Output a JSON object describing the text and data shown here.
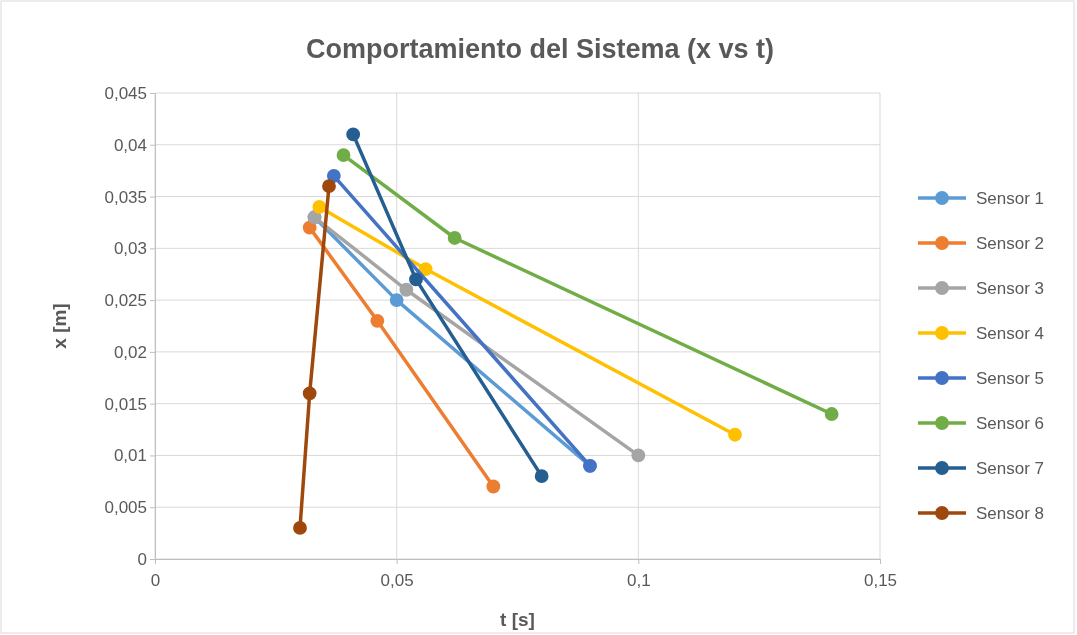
{
  "chart_data": {
    "type": "line",
    "title": "Comportamiento del Sistema (x vs t)",
    "xlabel": "t [s]",
    "ylabel": "x [m]",
    "xlim": [
      0,
      0.15
    ],
    "xticks": [
      {
        "value": 0,
        "label": "0"
      },
      {
        "value": 0.05,
        "label": "0,05"
      },
      {
        "value": 0.1,
        "label": "0,1"
      },
      {
        "value": 0.15,
        "label": "0,15"
      }
    ],
    "ylim": [
      0,
      0.045
    ],
    "yticks": [
      {
        "value": 0,
        "label": "0"
      },
      {
        "value": 0.005,
        "label": "0,005"
      },
      {
        "value": 0.01,
        "label": "0,01"
      },
      {
        "value": 0.015,
        "label": "0,015"
      },
      {
        "value": 0.02,
        "label": "0,02"
      },
      {
        "value": 0.025,
        "label": "0,025"
      },
      {
        "value": 0.03,
        "label": "0,03"
      },
      {
        "value": 0.035,
        "label": "0,035"
      },
      {
        "value": 0.04,
        "label": "0,04"
      },
      {
        "value": 0.045,
        "label": "0,045"
      }
    ],
    "grid": true,
    "legend": "right",
    "marker": "circle",
    "line_style": "solid",
    "series": [
      {
        "name": "Sensor 1",
        "color": "#5b9bd5",
        "x": [
          0.033,
          0.05,
          0.09
        ],
        "values": [
          0.033,
          0.025,
          0.009
        ]
      },
      {
        "name": "Sensor 2",
        "color": "#ed7d31",
        "x": [
          0.032,
          0.046,
          0.07
        ],
        "values": [
          0.032,
          0.023,
          0.007
        ]
      },
      {
        "name": "Sensor 3",
        "color": "#a5a5a5",
        "x": [
          0.033,
          0.052,
          0.1
        ],
        "values": [
          0.033,
          0.026,
          0.01
        ]
      },
      {
        "name": "Sensor 4",
        "color": "#ffc000",
        "x": [
          0.034,
          0.056,
          0.12
        ],
        "values": [
          0.034,
          0.028,
          0.012
        ]
      },
      {
        "name": "Sensor 5",
        "color": "#4472c4",
        "x": [
          0.037,
          0.09
        ],
        "values": [
          0.037,
          0.009
        ]
      },
      {
        "name": "Sensor 6",
        "color": "#70ad47",
        "x": [
          0.039,
          0.062,
          0.14
        ],
        "values": [
          0.039,
          0.031,
          0.014
        ]
      },
      {
        "name": "Sensor 7",
        "color": "#255e91",
        "x": [
          0.041,
          0.054,
          0.08
        ],
        "values": [
          0.041,
          0.027,
          0.008
        ]
      },
      {
        "name": "Sensor 8",
        "color": "#9e480e",
        "x": [
          0.036,
          0.032,
          0.03
        ],
        "values": [
          0.036,
          0.016,
          0.003
        ]
      }
    ]
  }
}
